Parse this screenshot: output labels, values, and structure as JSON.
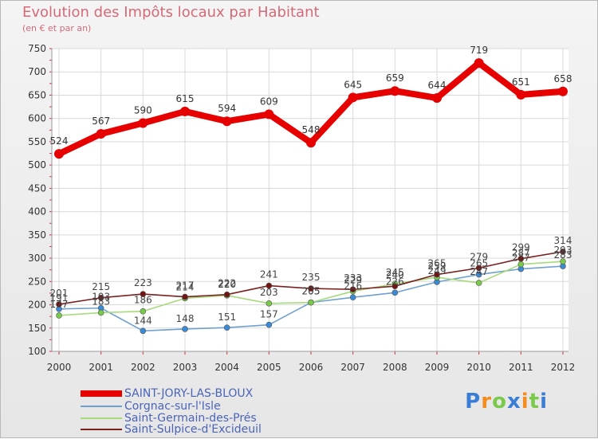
{
  "chart_data": {
    "type": "line",
    "title": "Evolution des Impôts locaux par Habitant",
    "subtitle": "(en € et par an)",
    "xlabel": "",
    "ylabel": "",
    "x": [
      "2000",
      "2001",
      "2002",
      "2003",
      "2004",
      "2005",
      "2006",
      "2007",
      "2008",
      "2009",
      "2010",
      "2011",
      "2012"
    ],
    "ylim": [
      100,
      750
    ],
    "yticks": [
      100,
      150,
      200,
      250,
      300,
      350,
      400,
      450,
      500,
      550,
      600,
      650,
      700,
      750
    ],
    "grid": true,
    "legend_position": "bottom-left",
    "series": [
      {
        "name": "SAINT-JORY-LAS-BLOUX",
        "color": "#e60000",
        "values": [
          524,
          567,
          590,
          615,
          594,
          609,
          548,
          645,
          659,
          644,
          719,
          651,
          658
        ],
        "labels": [
          "524",
          "567",
          "590",
          "615",
          "594",
          "609",
          "548",
          "645",
          "659",
          "644",
          "719",
          "651",
          "658"
        ]
      },
      {
        "name": "Corgnac-sur-l'Isle",
        "color": "#6fa0d0",
        "marker": "#3a8ad6",
        "values": [
          191,
          193,
          144,
          148,
          151,
          157,
          205,
          216,
          226,
          249,
          265,
          277,
          283
        ],
        "labels": [
          "191",
          "193",
          "144",
          "148",
          "151",
          "157",
          "205",
          "216",
          "226",
          "249",
          "265",
          "277",
          "283"
        ]
      },
      {
        "name": "Saint-Germain-des-Prés",
        "color": "#a6db7c",
        "marker": "#79c94a",
        "values": [
          177,
          183,
          186,
          214,
          220,
          203,
          205,
          229,
          245,
          259,
          247,
          287,
          293
        ],
        "labels": [
          "177",
          "183",
          "186",
          "214",
          "220",
          "203",
          "205",
          "229",
          "245",
          "259",
          "247",
          "287",
          "293"
        ]
      },
      {
        "name": "Saint-Sulpice-d'Excideuil",
        "color": "#7a2020",
        "marker": "#701414",
        "values": [
          201,
          215,
          223,
          217,
          222,
          241,
          235,
          233,
          240,
          265,
          279,
          299,
          314
        ],
        "labels": [
          "201",
          "215",
          "223",
          "217",
          "222",
          "241",
          "235",
          "233",
          "240",
          "265",
          "279",
          "299",
          "314"
        ]
      }
    ]
  },
  "logo": {
    "text": "Proxiti",
    "letter_colors": [
      "#3a7dd6",
      "#f28c1e",
      "#79c94a",
      "#3a7dd6",
      "#f28c1e",
      "#79c94a",
      "#3a7dd6"
    ]
  }
}
